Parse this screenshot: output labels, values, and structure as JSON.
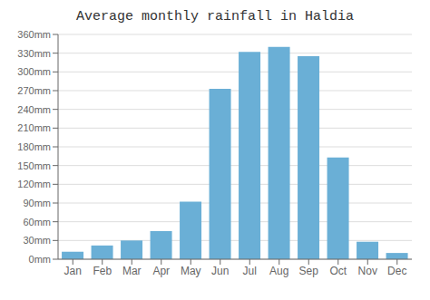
{
  "chart_data": {
    "type": "bar",
    "title": "Average monthly rainfall in Haldia",
    "categories": [
      "Jan",
      "Feb",
      "Mar",
      "Apr",
      "May",
      "Jun",
      "Jul",
      "Aug",
      "Sep",
      "Oct",
      "Nov",
      "Dec"
    ],
    "values": [
      12,
      22,
      30,
      45,
      92,
      273,
      332,
      340,
      325,
      163,
      28,
      10
    ],
    "color": "#6aafd6",
    "ylim": [
      0,
      360
    ],
    "yticks": [
      {
        "value": 0,
        "label": "0mm"
      },
      {
        "value": 30,
        "label": "30mm"
      },
      {
        "value": 60,
        "label": "60mm"
      },
      {
        "value": 90,
        "label": "90mm"
      },
      {
        "value": 120,
        "label": "120mm"
      },
      {
        "value": 150,
        "label": "150mm"
      },
      {
        "value": 180,
        "label": "180mm"
      },
      {
        "value": 210,
        "label": "210mm"
      },
      {
        "value": 240,
        "label": "240mm"
      },
      {
        "value": 270,
        "label": "270mm"
      },
      {
        "value": 300,
        "label": "300mm"
      },
      {
        "value": 330,
        "label": "330mm"
      },
      {
        "value": 360,
        "label": "360mm"
      }
    ],
    "grid": true
  }
}
